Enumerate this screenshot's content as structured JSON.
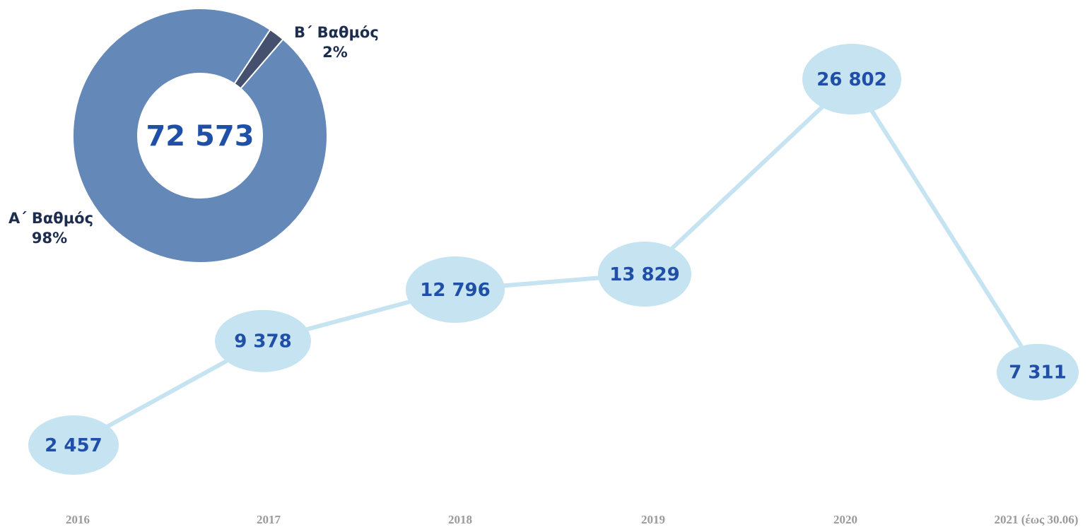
{
  "chart_data": [
    {
      "type": "pie",
      "variant": "donut",
      "center_label": "72 573",
      "slices": [
        {
          "name": "Α΄ Βαθμός",
          "percent_label": "98%",
          "value": 98,
          "color": "#6488b8"
        },
        {
          "name": "Β΄ Βαθμός",
          "percent_label": "2%",
          "value": 2,
          "color": "#44506e"
        }
      ]
    },
    {
      "type": "line",
      "categories": [
        "2016",
        "2017",
        "2018",
        "2019",
        "2020",
        "2021 (έως 30.06)"
      ],
      "series": [
        {
          "values": [
            2457,
            9378,
            12796,
            13829,
            26802,
            7311
          ],
          "value_labels": [
            "2 457",
            "9 378",
            "12 796",
            "13 829",
            "26 802",
            "7 311"
          ]
        }
      ],
      "marker": "ellipse",
      "line_color": "#c5e3f1",
      "marker_color": "#c5e3f1",
      "label_color": "#1f4fa6",
      "grid": false,
      "legend": "none",
      "ylim": [
        0,
        29000
      ]
    }
  ]
}
